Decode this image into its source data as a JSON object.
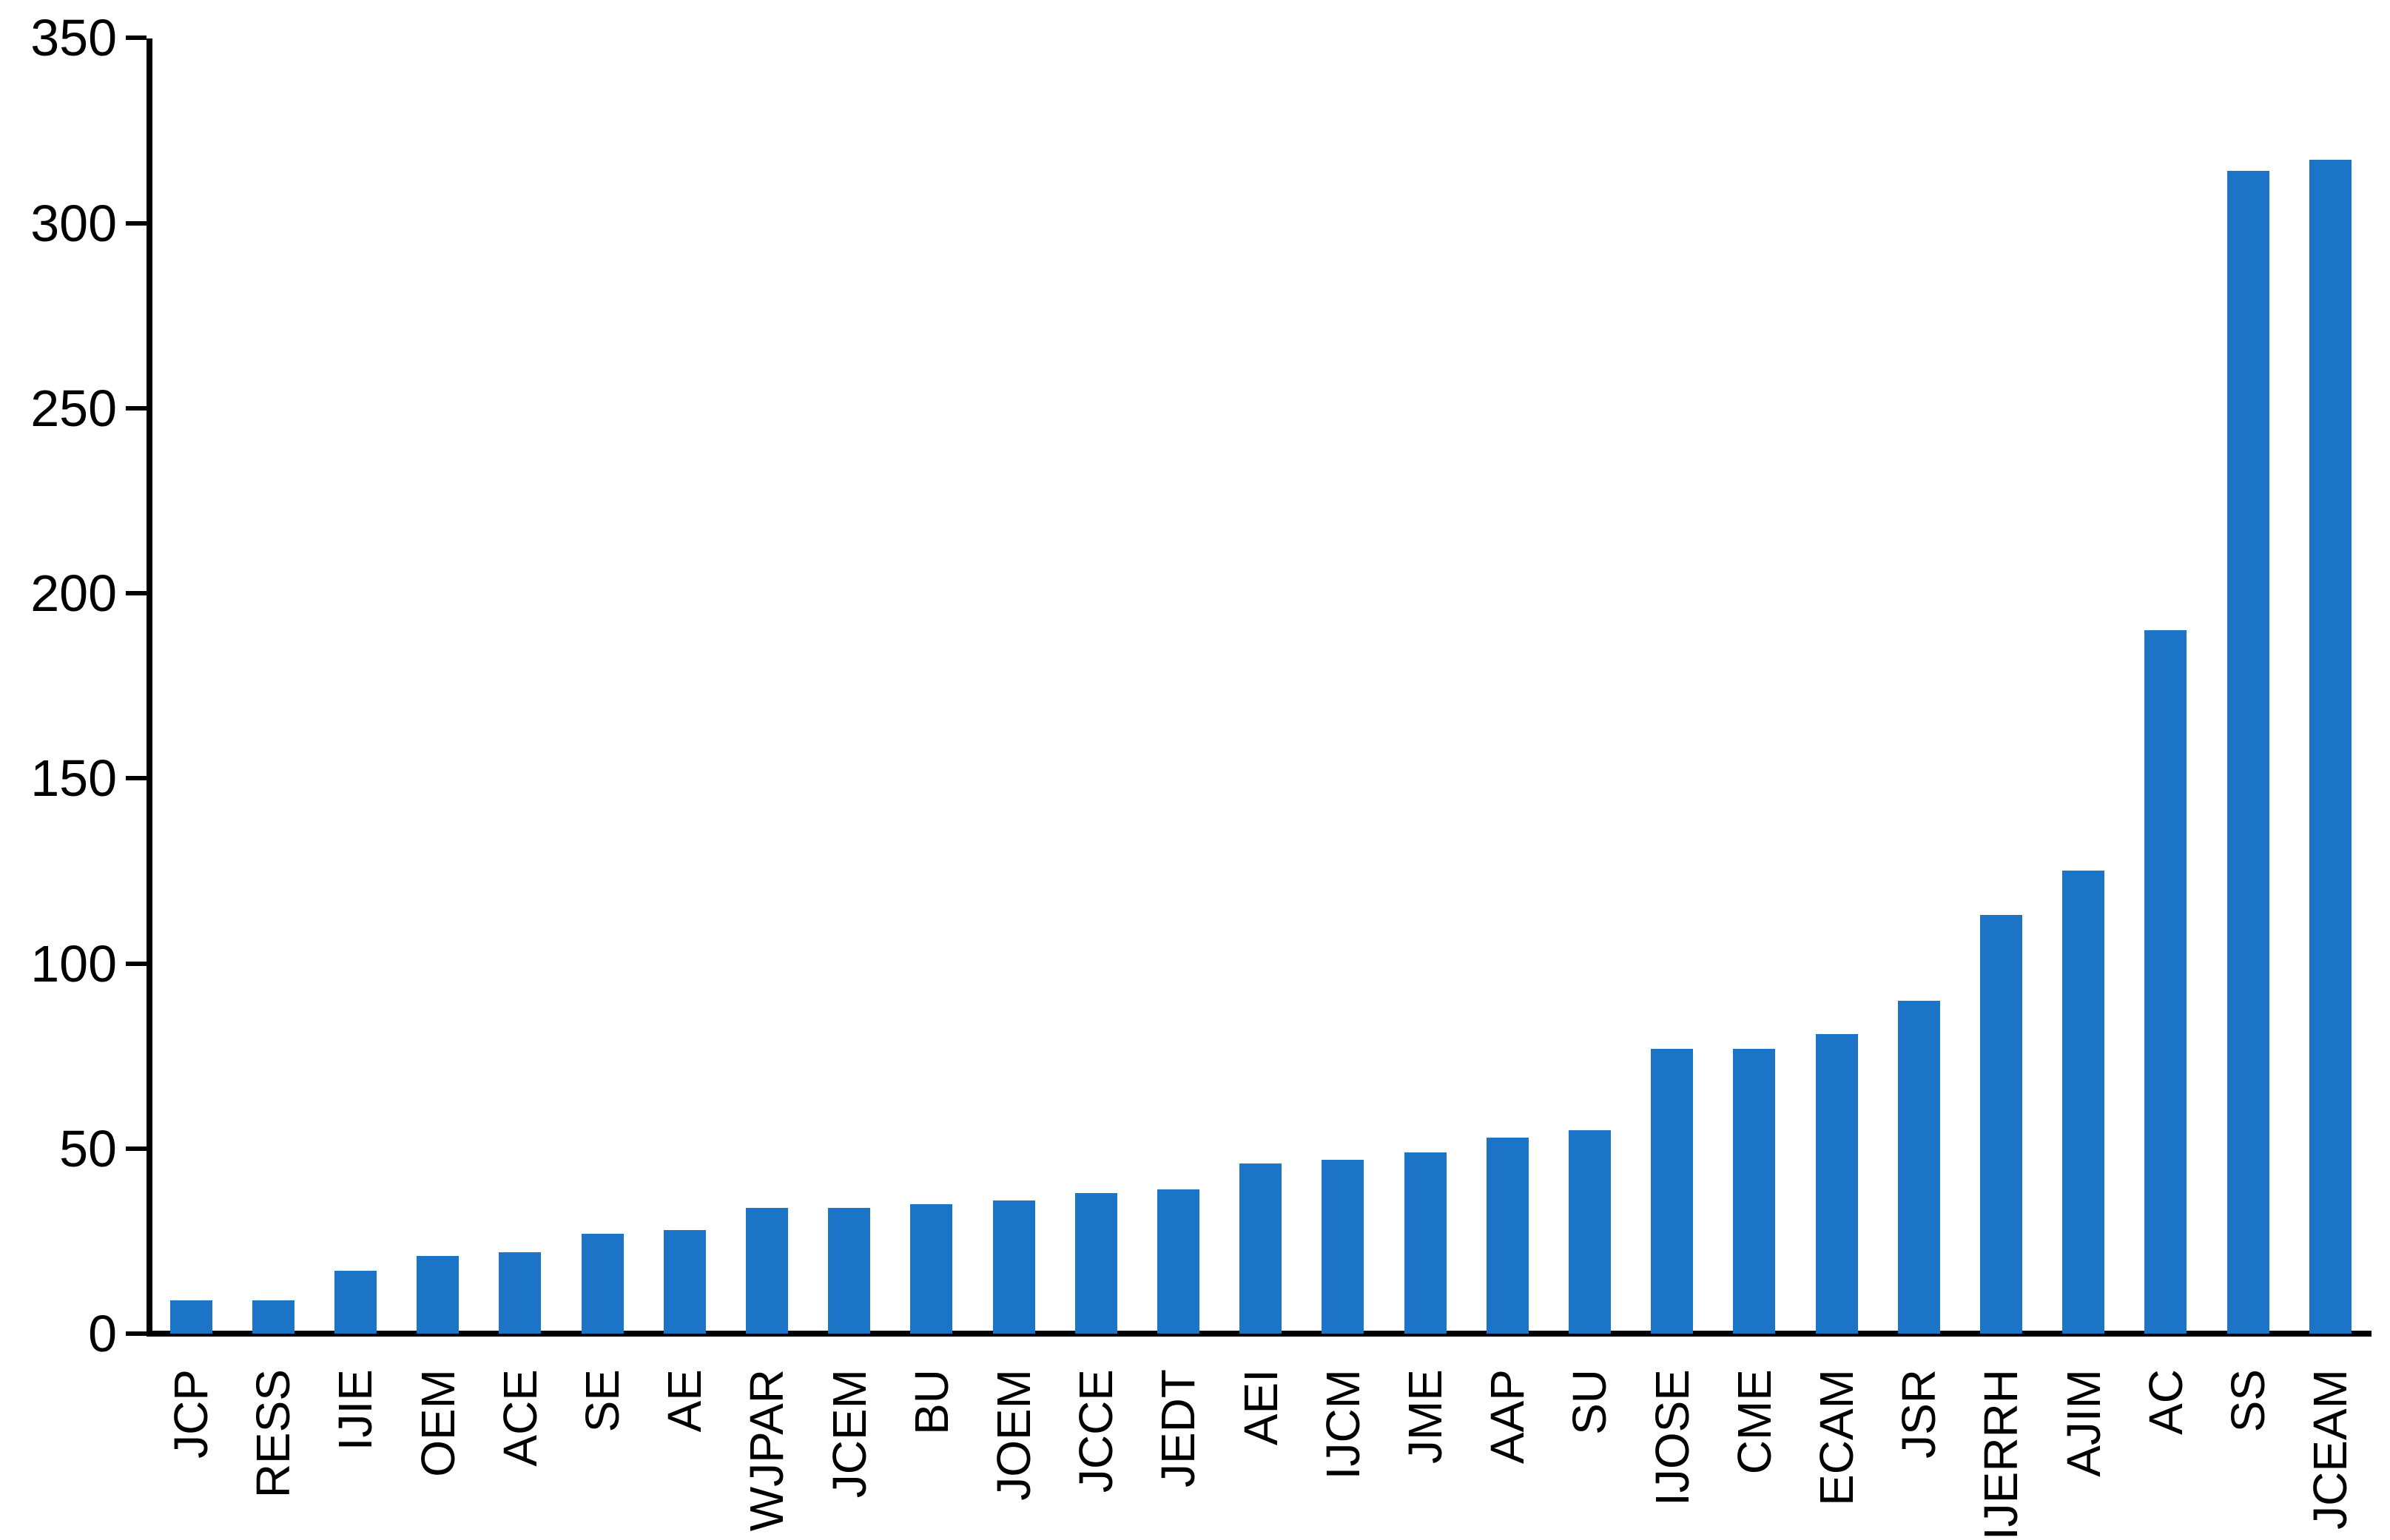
{
  "chart_data": {
    "type": "bar",
    "title": "",
    "xlabel": "",
    "ylabel": "",
    "categories": [
      "JCP",
      "RESS",
      "IJIE",
      "OEM",
      "ACE",
      "SE",
      "AE",
      "WJPAR",
      "JCEM",
      "BU",
      "JOEM",
      "JCCE",
      "JEDT",
      "AEI",
      "IJCM",
      "JME",
      "AAP",
      "SU",
      "IJOSE",
      "CME",
      "ECAM",
      "JSR",
      "IJERRH",
      "AJIM",
      "AC",
      "SS",
      "JCEAM"
    ],
    "values": [
      9,
      9,
      17,
      21,
      22,
      27,
      28,
      34,
      34,
      35,
      36,
      38,
      39,
      46,
      47,
      49,
      53,
      55,
      77,
      77,
      81,
      90,
      113,
      125,
      190,
      314,
      317
    ],
    "ylim": [
      0,
      350
    ],
    "yticks": [
      0,
      50,
      100,
      150,
      200,
      250,
      300,
      350
    ],
    "ytick_labels": [
      "0",
      "50",
      "100",
      "150",
      "200",
      "250",
      "300",
      "350"
    ],
    "grid": "off",
    "legend": "none",
    "bar_color": "#1B74C5",
    "axis_color": "#000000",
    "text_color": "#000000",
    "x_label_rotation_degrees": -90
  }
}
